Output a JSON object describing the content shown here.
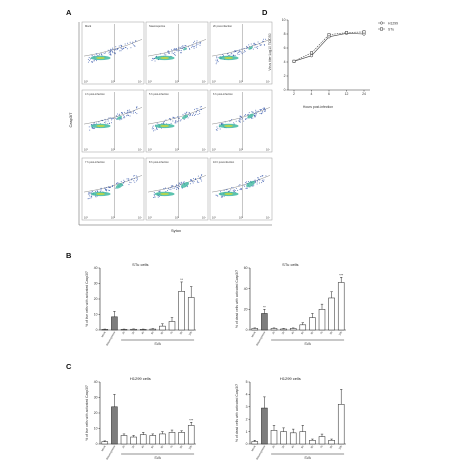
{
  "panels": {
    "A": "A",
    "B": "B",
    "C": "C",
    "D": "D"
  },
  "flow": {
    "y_axis_label": "Casp3/7",
    "x_axis_label": "Sytox",
    "cells": [
      {
        "label": "Mock"
      },
      {
        "label": "Staurosporine"
      },
      {
        "label": "2h post-infection"
      },
      {
        "label": "4 h post-infection"
      },
      {
        "label": "5 h post-infection"
      },
      {
        "label": "6 h post-infection"
      },
      {
        "label": "7 h post-infection"
      },
      {
        "label": "8 h post-infection"
      },
      {
        "label": "10 h post-infection"
      }
    ],
    "colors": {
      "cloud": "#2c4fa8",
      "core": "#3fb8a0",
      "hot": "#b6d64a",
      "gate": "#8a8a8a"
    }
  },
  "chart_data": [
    {
      "id": "D",
      "type": "line",
      "title": "",
      "xlabel": "Hours post-infection",
      "ylabel": "Virus titer Log10 TCID50",
      "x": [
        2,
        4,
        6,
        12,
        24
      ],
      "xtick_labels": [
        "2",
        "4",
        "6",
        "12",
        "24"
      ],
      "ylim": [
        0,
        10
      ],
      "yticks": [
        0,
        2,
        4,
        6,
        8,
        10
      ],
      "legend_position": "top-right",
      "series": [
        {
          "name": "H1299",
          "marker": "circle",
          "values": [
            4.1,
            4.9,
            7.6,
            8.1,
            8.0
          ]
        },
        {
          "name": "STu",
          "marker": "square",
          "values": [
            4.1,
            5.3,
            7.9,
            8.2,
            8.3
          ]
        }
      ]
    },
    {
      "id": "B-left",
      "type": "bar",
      "title": "STu cells",
      "ylabel": "% of live cells with activated Casp3/7",
      "categories": [
        "Mock",
        "Staurosporine",
        "2h",
        "3h",
        "4h",
        "5h",
        "6h",
        "7h",
        "8h",
        "10h"
      ],
      "group_label": "SVA",
      "ylim": [
        0,
        40
      ],
      "yticks": [
        0,
        10,
        20,
        30,
        40
      ],
      "values": [
        0.4,
        8.5,
        0.4,
        0.5,
        0.4,
        0.6,
        2.5,
        5.5,
        25,
        21
      ],
      "errors": [
        0.2,
        3.5,
        0.2,
        0.2,
        0.2,
        0.3,
        1.5,
        2.5,
        6,
        7
      ],
      "significance": [
        "",
        "",
        "",
        "",
        "",
        "",
        "",
        "",
        "**",
        ""
      ]
    },
    {
      "id": "B-right",
      "type": "bar",
      "title": "STu cells",
      "ylabel": "% of dead cells with activated Casp3/7",
      "categories": [
        "Mock",
        "Staurosporine",
        "2h",
        "3h",
        "4h",
        "5h",
        "6h",
        "7h",
        "8h",
        "10h"
      ],
      "group_label": "SVA",
      "ylim": [
        0,
        60
      ],
      "yticks": [
        0,
        20,
        40,
        60
      ],
      "values": [
        1.5,
        16,
        1.5,
        1,
        1.5,
        5,
        12,
        20,
        31,
        46
      ],
      "errors": [
        0.5,
        4,
        0.5,
        0.5,
        0.5,
        2,
        4,
        5,
        6,
        5
      ],
      "significance": [
        "",
        "**",
        "",
        "",
        "",
        "",
        "",
        "",
        "",
        "***"
      ]
    },
    {
      "id": "C-left",
      "type": "bar",
      "title": "H1299 cells",
      "ylabel": "% of live cells with activated Casp3/7",
      "categories": [
        "Mock",
        "Staurosporine",
        "2h",
        "3h",
        "4h",
        "5h",
        "6h",
        "7h",
        "8h",
        "10h"
      ],
      "group_label": "SVA",
      "ylim": [
        0,
        40
      ],
      "yticks": [
        0,
        10,
        20,
        30,
        40
      ],
      "values": [
        1.5,
        24,
        5.5,
        4.5,
        6,
        5.5,
        6.5,
        7.5,
        7.5,
        12
      ],
      "errors": [
        0.5,
        8,
        1,
        1,
        1.5,
        1,
        1.5,
        1.5,
        1,
        2
      ],
      "significance": [
        "",
        "",
        "",
        "",
        "",
        "",
        "",
        "",
        "",
        "***"
      ]
    },
    {
      "id": "C-right",
      "type": "bar",
      "title": "H1299 cells",
      "ylabel": "% of dead cells with activated Casp3/7",
      "categories": [
        "Mock",
        "Staurosporine",
        "2h",
        "3h",
        "4h",
        "5h",
        "6h",
        "7h",
        "8h",
        "10h"
      ],
      "group_label": "SVA",
      "ylim": [
        0,
        5
      ],
      "yticks": [
        0,
        1,
        2,
        3,
        4,
        5
      ],
      "values": [
        0.2,
        2.9,
        1.1,
        1.0,
        0.9,
        1.0,
        0.3,
        0.6,
        0.3,
        3.2
      ],
      "errors": [
        0.1,
        0.9,
        0.4,
        0.3,
        0.3,
        0.5,
        0.1,
        0.2,
        0.1,
        1.2
      ],
      "significance": [
        "",
        "",
        "",
        "",
        "",
        "",
        "",
        "",
        "",
        ""
      ]
    }
  ],
  "bar_colors": {
    "control": "#ffffff",
    "treated": "#7d7d7d",
    "outline": "#222222"
  }
}
